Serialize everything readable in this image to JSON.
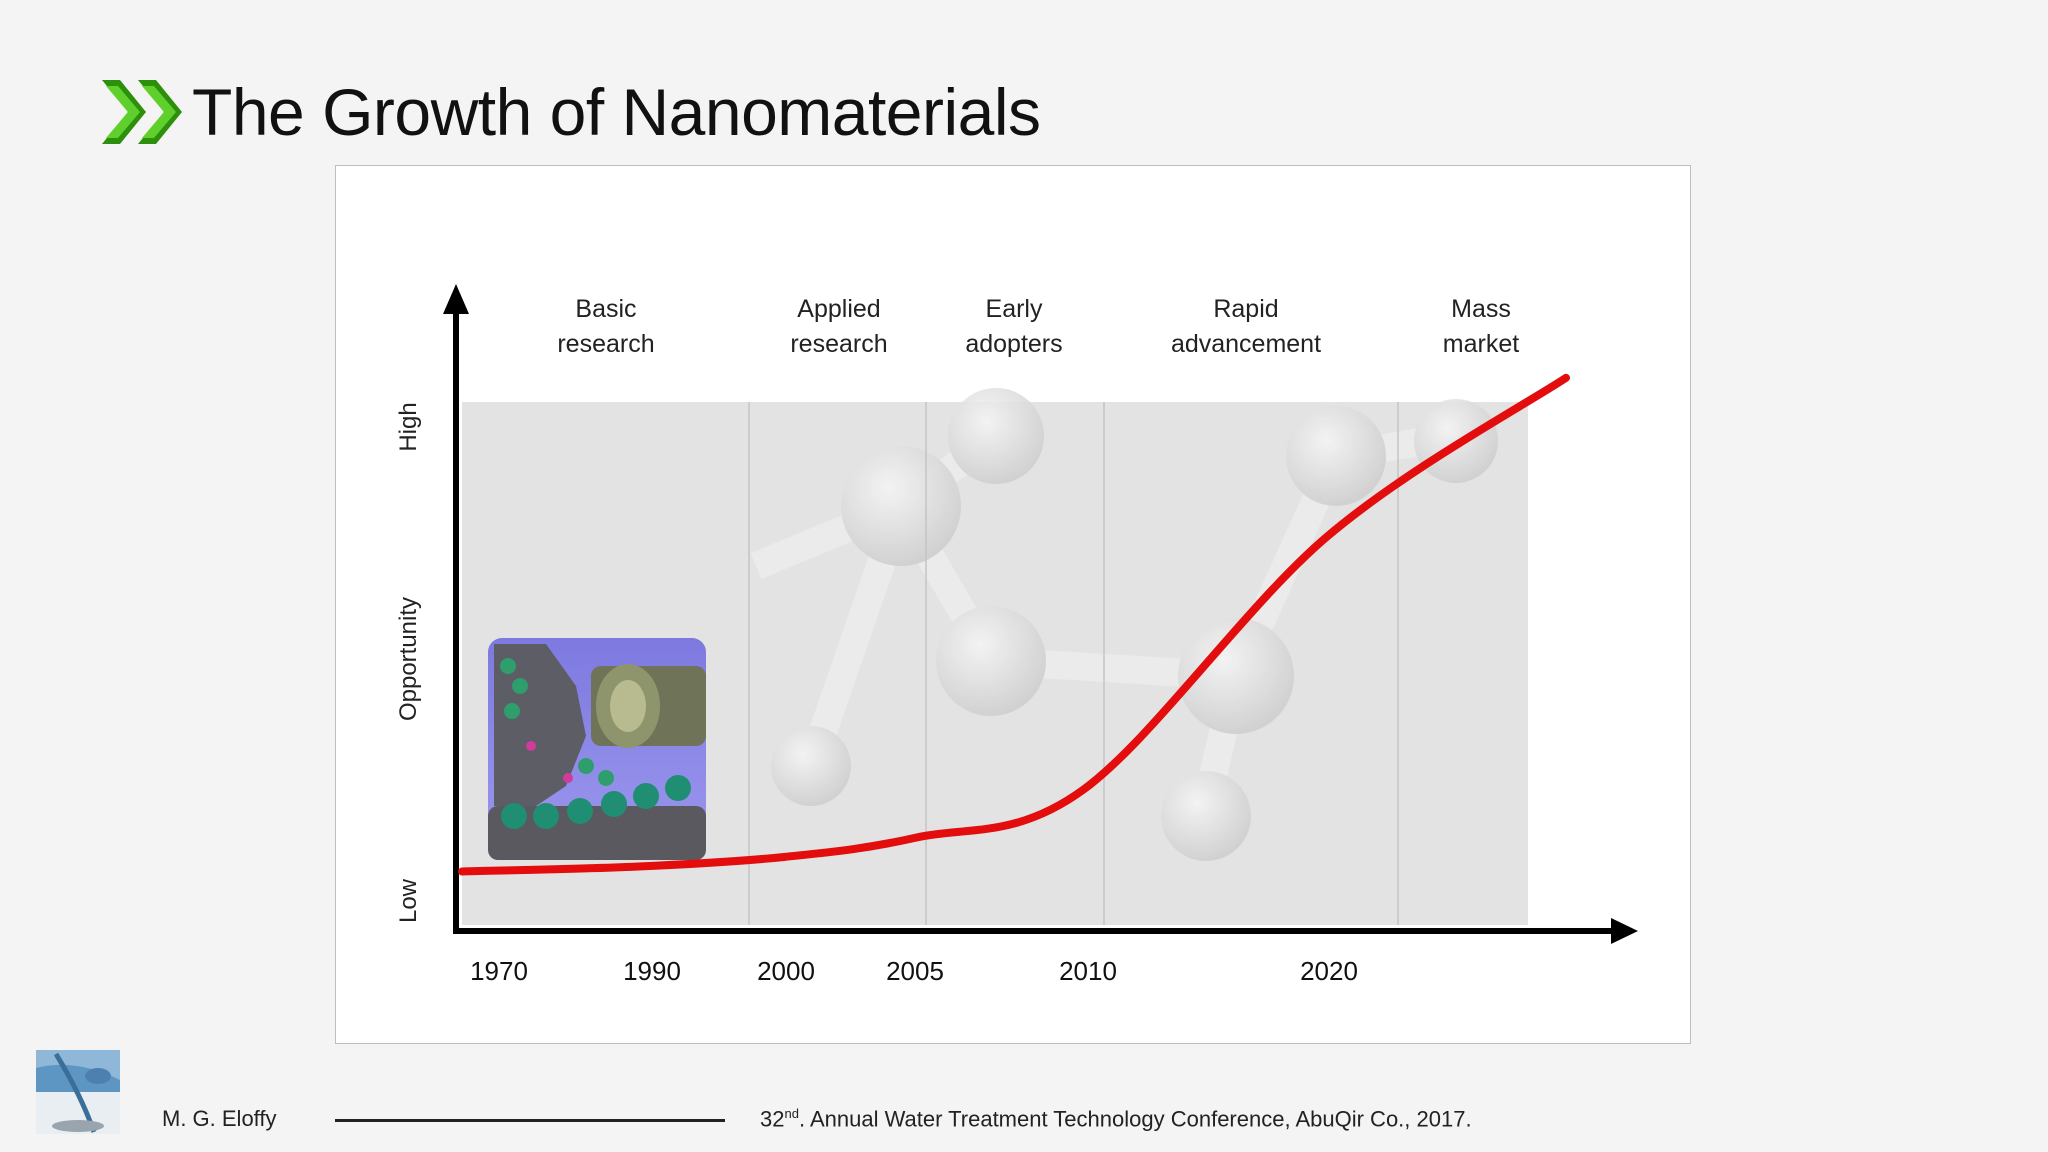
{
  "slide": {
    "title": "The Growth of Nanomaterials",
    "accent_color": "#3cb30f"
  },
  "footer": {
    "author": "M. G. Eloffy",
    "conference_ordinal": "32",
    "conference_suffix": "nd",
    "conference_rest": ". Annual Water Treatment Technology Conference, AbuQir Co., 2017.",
    "logo_icon": "water-drop-logo-icon"
  },
  "chart_data": {
    "type": "line",
    "title": "",
    "ylabel_parts": [
      "Low",
      "Opportunity",
      "High"
    ],
    "xticks": [
      "1970",
      "1990",
      "2000",
      "2005",
      "2010",
      "2020"
    ],
    "phases": [
      {
        "line1": "Basic",
        "line2": "research"
      },
      {
        "line1": "Applied",
        "line2": "research"
      },
      {
        "line1": "Early",
        "line2": "adopters"
      },
      {
        "line1": "Rapid",
        "line2": "advancement"
      },
      {
        "line1": "Mass",
        "line2": "market"
      }
    ],
    "series": [
      {
        "color": "#e30d0d",
        "shape": "s-curve",
        "opportunity": [
          0.03,
          0.04,
          0.06,
          0.1,
          0.2,
          0.72,
          1.05
        ]
      }
    ],
    "background_illustration": "molecule-structure",
    "inset_illustration": "nano-gear-machine"
  }
}
